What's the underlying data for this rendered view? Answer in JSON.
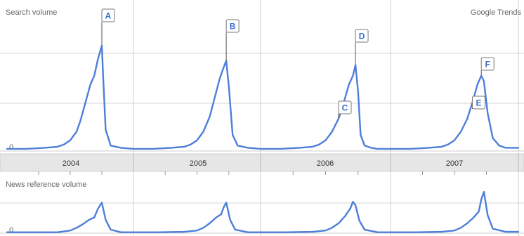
{
  "header": {
    "search_label": "Search volume",
    "brand": "Google Trends"
  },
  "news_label": "News reference volume",
  "colors": {
    "line": "#4d7fd9",
    "grid": "#d7d7d7",
    "band": "#e6e6e6",
    "annotation_text": "#3a6fd0"
  },
  "chart_data": [
    {
      "type": "line",
      "title": "",
      "ylabel": "Search volume",
      "ylim": [
        0,
        100
      ],
      "grid": true,
      "y_tick_labels": [
        "0"
      ],
      "categories": [
        "2004",
        "2005",
        "2006",
        "2007"
      ],
      "series": [
        {
          "x": [
            2004.0,
            2004.15,
            2004.3,
            2004.4,
            2004.45,
            2004.5,
            2004.55,
            2004.58,
            2004.62,
            2004.66,
            2004.69,
            2004.72,
            2004.75,
            2004.76,
            2004.78,
            2004.82,
            2004.9,
            2005.0,
            2005.15,
            2005.3,
            2005.4,
            2005.45,
            2005.5,
            2005.55,
            2005.6,
            2005.64,
            2005.68,
            2005.71,
            2005.73,
            2005.75,
            2005.78,
            2005.82,
            2005.9,
            2006.0,
            2006.15,
            2006.3,
            2006.4,
            2006.45,
            2006.5,
            2006.55,
            2006.6,
            2006.64,
            2006.68,
            2006.71,
            2006.73,
            2006.75,
            2006.77,
            2006.8,
            2006.85,
            2006.9,
            2007.0,
            2007.15,
            2007.3,
            2007.4,
            2007.45,
            2007.5,
            2007.55,
            2007.6,
            2007.64,
            2007.68,
            2007.71,
            2007.73,
            2007.74,
            2007.76,
            2007.8,
            2007.85,
            2007.9,
            2007.95,
            2008.0
          ],
          "values": [
            2,
            2,
            3,
            4,
            6,
            10,
            18,
            28,
            45,
            62,
            70,
            86,
            98,
            70,
            20,
            5,
            3,
            2,
            2,
            3,
            4,
            6,
            10,
            18,
            32,
            50,
            68,
            78,
            84,
            60,
            15,
            5,
            3,
            2,
            2,
            3,
            4,
            6,
            10,
            18,
            30,
            45,
            62,
            70,
            80,
            55,
            15,
            5,
            3,
            2,
            2,
            2,
            3,
            4,
            6,
            10,
            18,
            30,
            45,
            62,
            70,
            65,
            55,
            35,
            12,
            5,
            3,
            3,
            3
          ]
        }
      ],
      "annotations": [
        {
          "label": "A",
          "x": 2004.75,
          "y": 98
        },
        {
          "label": "B",
          "x": 2005.73,
          "y": 84
        },
        {
          "label": "C",
          "x": 2006.6,
          "y": 30
        },
        {
          "label": "D",
          "x": 2006.73,
          "y": 80
        },
        {
          "label": "E",
          "x": 2007.64,
          "y": 45
        },
        {
          "label": "F",
          "x": 2007.71,
          "y": 70
        }
      ]
    },
    {
      "type": "line",
      "title": "",
      "ylabel": "News reference volume",
      "ylim": [
        0,
        100
      ],
      "grid": true,
      "y_tick_labels": [
        "0"
      ],
      "series": [
        {
          "x": [
            2004.0,
            2004.2,
            2004.4,
            2004.5,
            2004.55,
            2004.6,
            2004.65,
            2004.69,
            2004.72,
            2004.75,
            2004.78,
            2004.82,
            2004.9,
            2005.0,
            2005.2,
            2005.4,
            2005.5,
            2005.55,
            2005.6,
            2005.65,
            2005.69,
            2005.71,
            2005.73,
            2005.76,
            2005.8,
            2005.9,
            2006.0,
            2006.2,
            2006.4,
            2006.5,
            2006.55,
            2006.6,
            2006.65,
            2006.69,
            2006.71,
            2006.73,
            2006.76,
            2006.8,
            2006.9,
            2007.0,
            2007.2,
            2007.4,
            2007.5,
            2007.55,
            2007.6,
            2007.65,
            2007.69,
            2007.71,
            2007.73,
            2007.76,
            2007.8,
            2007.9,
            2008.0
          ],
          "values": [
            2,
            2,
            2,
            6,
            12,
            20,
            30,
            35,
            55,
            68,
            30,
            8,
            2,
            2,
            2,
            3,
            6,
            12,
            22,
            35,
            42,
            58,
            68,
            30,
            8,
            2,
            2,
            2,
            3,
            6,
            12,
            22,
            38,
            55,
            70,
            62,
            28,
            8,
            2,
            2,
            2,
            3,
            6,
            12,
            22,
            35,
            48,
            75,
            92,
            40,
            10,
            3,
            3
          ]
        }
      ]
    }
  ]
}
